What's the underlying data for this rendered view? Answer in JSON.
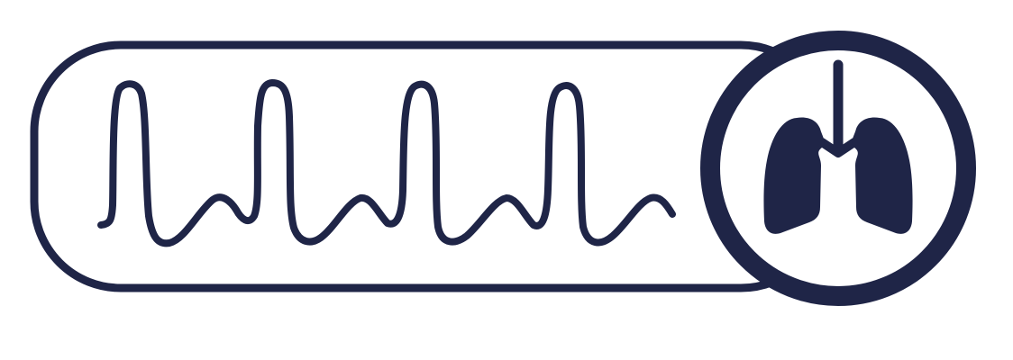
{
  "icon": {
    "name": "respiratory-waveform-lungs-icon",
    "parts": [
      "waveform-capsule",
      "respiratory-waveform",
      "lungs-badge",
      "lungs-icon"
    ]
  },
  "colors": {
    "stroke": "#1f2547",
    "fill": "#1f2547",
    "background": "#ffffff",
    "badge_fill": "#ffffff"
  }
}
